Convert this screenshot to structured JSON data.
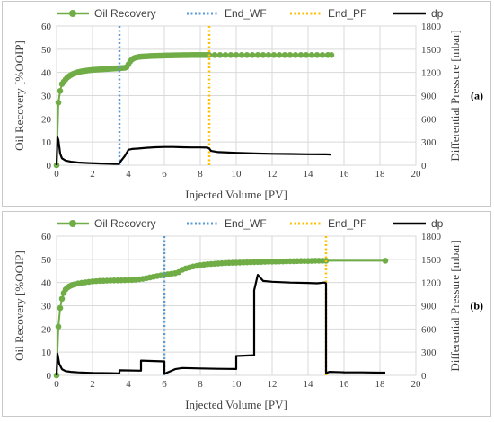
{
  "chart_data": [
    {
      "type": "line",
      "panel_label": "(a)",
      "xlabel": "Injected Volume [PV]",
      "ylabel": "Oil Recovery [%OOIP]",
      "y2label": "Differential Pressure [mbar]",
      "xlim": [
        0,
        20
      ],
      "ylim": [
        0,
        60
      ],
      "y2lim": [
        0,
        1800
      ],
      "xticks": [
        0,
        2,
        4,
        6,
        8,
        10,
        12,
        14,
        16,
        18,
        20
      ],
      "yticks": [
        0,
        10,
        20,
        30,
        40,
        50,
        60
      ],
      "y2ticks": [
        0,
        300,
        600,
        900,
        1200,
        1500,
        1800
      ],
      "grid": true,
      "legend_position": "top",
      "series": [
        {
          "name": "Oil Recovery",
          "axis": "left",
          "color": "#70ad47",
          "style": "line-marker",
          "x": [
            0,
            0.1,
            0.2,
            0.3,
            0.4,
            0.5,
            0.6,
            0.7,
            0.8,
            0.9,
            1.0,
            1.1,
            1.2,
            1.3,
            1.4,
            1.5,
            1.6,
            1.7,
            1.8,
            1.9,
            2.0,
            2.1,
            2.2,
            2.3,
            2.4,
            2.5,
            2.6,
            2.7,
            2.8,
            2.9,
            3.0,
            3.1,
            3.2,
            3.3,
            3.4,
            3.5,
            3.6,
            3.7,
            3.8,
            3.9,
            4.0,
            4.1,
            4.2,
            4.3,
            4.4,
            4.5,
            4.6,
            4.7,
            4.8,
            4.9,
            5.0,
            5.1,
            5.2,
            5.3,
            5.4,
            5.5,
            5.6,
            5.7,
            5.8,
            5.9,
            6.0,
            6.1,
            6.2,
            6.3,
            6.4,
            6.5,
            6.6,
            6.7,
            6.8,
            6.9,
            7.0,
            7.1,
            7.2,
            7.3,
            7.4,
            7.5,
            7.6,
            7.7,
            7.8,
            7.9,
            8.0,
            8.1,
            8.2,
            8.3,
            8.4,
            8.5,
            8.8,
            9.1,
            9.4,
            9.7,
            10.0,
            10.3,
            10.6,
            10.9,
            11.2,
            11.5,
            11.8,
            12.1,
            12.4,
            12.7,
            13.0,
            13.3,
            13.6,
            13.9,
            14.2,
            14.5,
            14.8,
            15.1,
            15.3
          ],
          "y": [
            0,
            27,
            32,
            35,
            36,
            37,
            37.8,
            38.4,
            38.9,
            39.3,
            39.6,
            39.9,
            40.1,
            40.3,
            40.5,
            40.6,
            40.7,
            40.8,
            40.9,
            41.0,
            41.1,
            41.15,
            41.2,
            41.25,
            41.3,
            41.35,
            41.4,
            41.45,
            41.5,
            41.55,
            41.6,
            41.65,
            41.7,
            41.75,
            41.8,
            41.85,
            41.9,
            41.95,
            42.0,
            42.3,
            43.5,
            44.8,
            45.6,
            46.1,
            46.4,
            46.6,
            46.7,
            46.8,
            46.85,
            46.9,
            46.95,
            47.0,
            47.05,
            47.1,
            47.12,
            47.15,
            47.18,
            47.2,
            47.22,
            47.25,
            47.27,
            47.29,
            47.3,
            47.32,
            47.34,
            47.36,
            47.38,
            47.4,
            47.41,
            47.42,
            47.43,
            47.44,
            47.45,
            47.46,
            47.47,
            47.48,
            47.49,
            47.5,
            47.5,
            47.5,
            47.5,
            47.5,
            47.5,
            47.5,
            47.5,
            47.5,
            47.5,
            47.5,
            47.5,
            47.5,
            47.5,
            47.5,
            47.5,
            47.5,
            47.5,
            47.5,
            47.5,
            47.5,
            47.5,
            47.5,
            47.5,
            47.5,
            47.5,
            47.5,
            47.5,
            47.5,
            47.5,
            47.5,
            47.5
          ]
        },
        {
          "name": "End_WF",
          "axis": "left",
          "color": "#5b9bd5",
          "style": "dotted-vertical",
          "x": 3.5
        },
        {
          "name": "End_PF",
          "axis": "left",
          "color": "#ffc000",
          "style": "dotted-vertical",
          "x": 8.5
        },
        {
          "name": "dp",
          "axis": "right",
          "color": "#000000",
          "style": "line",
          "x": [
            0,
            0.05,
            0.1,
            0.2,
            0.3,
            0.5,
            0.8,
            1.2,
            1.8,
            2.5,
            3.0,
            3.4,
            3.5,
            3.6,
            3.8,
            4.0,
            4.2,
            4.5,
            5.0,
            5.5,
            6.0,
            6.5,
            7.0,
            7.5,
            8.0,
            8.4,
            8.5,
            8.6,
            9.0,
            10,
            11,
            12,
            13,
            14,
            15,
            15.3
          ],
          "y": [
            0,
            360,
            330,
            150,
            90,
            60,
            45,
            35,
            28,
            22,
            18,
            15,
            25,
            60,
            120,
            200,
            210,
            215,
            225,
            232,
            236,
            236,
            232,
            230,
            230,
            228,
            215,
            185,
            170,
            160,
            152,
            148,
            145,
            142,
            140,
            138
          ]
        }
      ]
    },
    {
      "type": "line",
      "panel_label": "(b)",
      "xlabel": "Injected Volume [PV]",
      "ylabel": "Oil Recovery [%OOIP]",
      "y2label": "Differential Pressure [mbar]",
      "xlim": [
        0,
        20
      ],
      "ylim": [
        0,
        60
      ],
      "y2lim": [
        0,
        1800
      ],
      "xticks": [
        0,
        2,
        4,
        6,
        8,
        10,
        12,
        14,
        16,
        18,
        20
      ],
      "yticks": [
        0,
        10,
        20,
        30,
        40,
        50,
        60
      ],
      "y2ticks": [
        0,
        300,
        600,
        900,
        1200,
        1500,
        1800
      ],
      "grid": true,
      "legend_position": "top",
      "series": [
        {
          "name": "Oil Recovery",
          "axis": "left",
          "color": "#70ad47",
          "style": "line-marker",
          "x": [
            0,
            0.1,
            0.2,
            0.3,
            0.4,
            0.5,
            0.6,
            0.7,
            0.8,
            0.9,
            1.0,
            1.2,
            1.4,
            1.6,
            1.8,
            2.0,
            2.2,
            2.4,
            2.6,
            2.8,
            3.0,
            3.2,
            3.4,
            3.6,
            3.8,
            4.0,
            4.2,
            4.4,
            4.6,
            4.8,
            5.0,
            5.2,
            5.4,
            5.6,
            5.8,
            6.0,
            6.2,
            6.4,
            6.6,
            6.8,
            7.0,
            7.2,
            7.4,
            7.6,
            7.8,
            8.0,
            8.2,
            8.4,
            8.6,
            8.8,
            9.0,
            9.2,
            9.4,
            9.6,
            9.8,
            10.0,
            10.2,
            10.4,
            10.6,
            10.8,
            11.0,
            11.2,
            11.4,
            11.6,
            11.8,
            12.0,
            12.2,
            12.4,
            12.6,
            12.8,
            13.0,
            13.2,
            13.4,
            13.6,
            13.8,
            14.0,
            14.2,
            14.4,
            14.6,
            14.8,
            15.0,
            18.3
          ],
          "y": [
            0,
            21,
            29,
            33,
            35.5,
            37,
            37.8,
            38.3,
            38.7,
            39.0,
            39.2,
            39.6,
            39.9,
            40.1,
            40.3,
            40.5,
            40.6,
            40.7,
            40.75,
            40.8,
            40.85,
            40.9,
            40.9,
            40.95,
            41.0,
            41.05,
            41.1,
            41.2,
            41.4,
            41.6,
            41.9,
            42.2,
            42.5,
            42.8,
            43.1,
            43.4,
            43.6,
            43.8,
            44.0,
            44.5,
            45.5,
            46.1,
            46.5,
            46.9,
            47.2,
            47.5,
            47.7,
            47.9,
            48.0,
            48.1,
            48.2,
            48.3,
            48.4,
            48.45,
            48.5,
            48.55,
            48.6,
            48.65,
            48.7,
            48.75,
            48.8,
            48.85,
            48.9,
            48.95,
            49.0,
            49.0,
            49.05,
            49.1,
            49.1,
            49.15,
            49.2,
            49.2,
            49.25,
            49.3,
            49.3,
            49.3,
            49.35,
            49.4,
            49.4,
            49.4,
            49.4,
            49.4
          ]
        },
        {
          "name": "End_WF",
          "axis": "left",
          "color": "#5b9bd5",
          "style": "dotted-vertical",
          "x": 6.0
        },
        {
          "name": "End_PF",
          "axis": "left",
          "color": "#ffc000",
          "style": "dotted-vertical",
          "x": 15.0
        },
        {
          "name": "dp",
          "axis": "right",
          "color": "#000000",
          "style": "line",
          "x": [
            0,
            0.05,
            0.15,
            0.3,
            0.5,
            0.8,
            1.2,
            2.0,
            3.0,
            3.5,
            3.5,
            4.7,
            4.7,
            6.0,
            6.0,
            6.3,
            6.6,
            7.0,
            8.0,
            9.0,
            10.0,
            10.0,
            11.0,
            11.0,
            11.2,
            11.5,
            12.0,
            13.0,
            14.0,
            14.5,
            14.9,
            15.0,
            15.0,
            15.2,
            16.0,
            17.0,
            18.0,
            18.3
          ],
          "y": [
            0,
            280,
            150,
            80,
            55,
            45,
            38,
            30,
            28,
            25,
            65,
            60,
            190,
            180,
            20,
            50,
            80,
            95,
            90,
            85,
            82,
            250,
            260,
            1100,
            1300,
            1220,
            1210,
            1200,
            1195,
            1190,
            1200,
            1190,
            30,
            45,
            40,
            38,
            35,
            35
          ]
        }
      ]
    }
  ]
}
